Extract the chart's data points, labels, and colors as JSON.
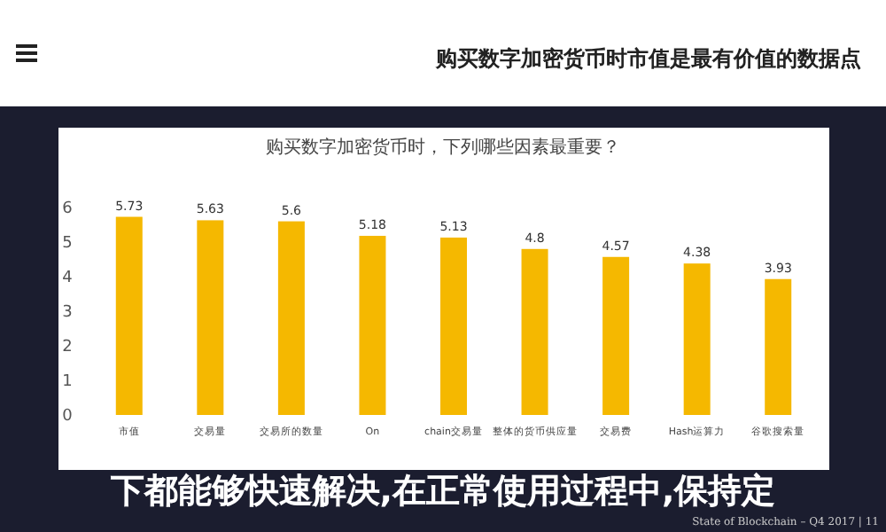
{
  "chart_data": {
    "type": "bar",
    "title": "购买数字加密货币时市值是最有价值的数据点",
    "subtitle": "购买数字加密货币时，下列哪些因素最重要？",
    "categories": [
      "市值",
      "交易量",
      "交易所的数量",
      "On",
      "chain交易量",
      "整体的货币供应量",
      "交易费",
      "Hash运算力",
      "谷歌搜索量"
    ],
    "values": [
      5.73,
      5.63,
      5.6,
      5.18,
      5.13,
      4.8,
      4.57,
      4.38,
      3.93
    ],
    "color": "#f5b800",
    "ylim": [
      0,
      6
    ],
    "yticks": [
      0,
      1,
      2,
      3,
      4,
      5,
      6
    ],
    "grid": false,
    "data_labels": true,
    "annotations": [
      "下都能够快速解决,在正常使用过程中,保持定",
      "State of Blockchain – Q4 2017 | 11"
    ]
  }
}
